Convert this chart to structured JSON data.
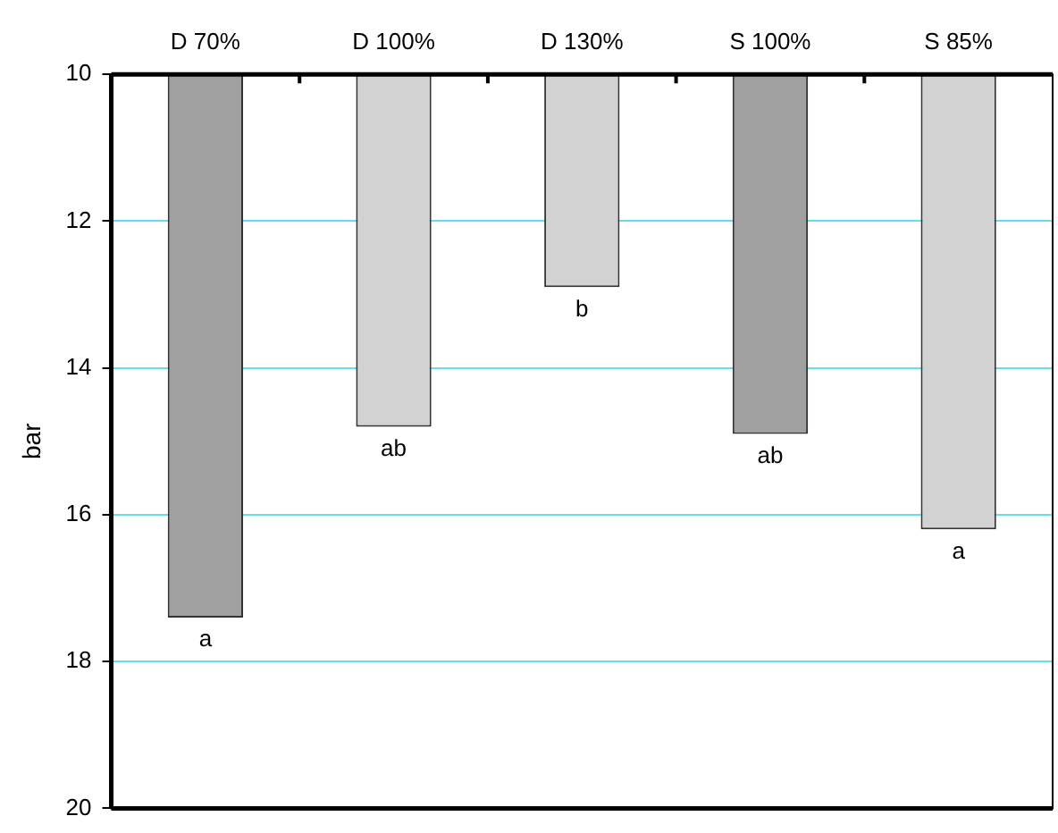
{
  "chart_data": {
    "type": "bar",
    "ylabel": "bar",
    "categories": [
      "D 70%",
      "D 100%",
      "D 130%",
      "S 100%",
      "S 85%"
    ],
    "values": [
      17.4,
      14.8,
      12.9,
      14.9,
      16.2
    ],
    "colors": [
      "#a0a0a0",
      "#d2d2d2",
      "#d2d2d2",
      "#a0a0a0",
      "#d2d2d2"
    ],
    "ylim": [
      20,
      10
    ],
    "yticks": [
      10,
      12,
      14,
      16,
      18,
      20
    ],
    "grid": "y",
    "annotations": [
      {
        "text": "a",
        "x": "D 70%",
        "y": 17.4
      },
      {
        "text": "ab",
        "x": "D 100%",
        "y": 14.8
      },
      {
        "text": "b",
        "x": "D 130%",
        "y": 12.9
      },
      {
        "text": "ab",
        "x": "S 100%",
        "y": 14.9
      },
      {
        "text": "a",
        "x": "S 85%",
        "y": 16.2
      }
    ]
  }
}
